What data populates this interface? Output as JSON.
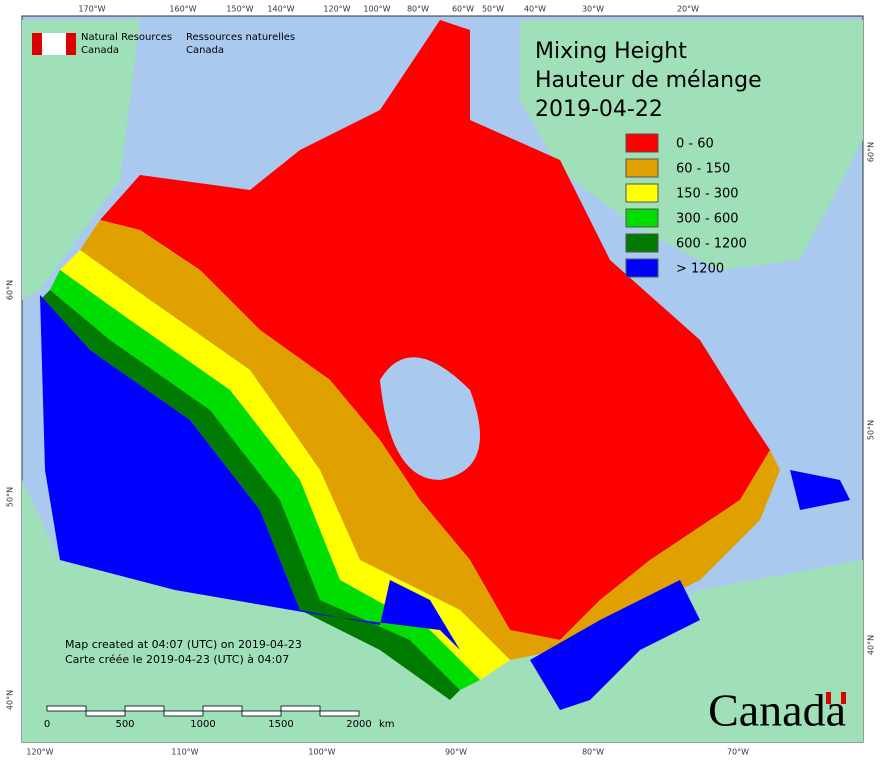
{
  "header": {
    "agency_en": [
      "Natural Resources",
      "Canada"
    ],
    "agency_fr": [
      "Ressources naturelles",
      "Canada"
    ]
  },
  "title": [
    "Mixing Height",
    "Hauteur de mélange",
    "2019-04-22"
  ],
  "legend": [
    {
      "label": "0 - 60",
      "color": "#ff0000"
    },
    {
      "label": "60 - 150",
      "color": "#e0a000"
    },
    {
      "label": "150 - 300",
      "color": "#ffff00"
    },
    {
      "label": "300 - 600",
      "color": "#00dd00"
    },
    {
      "label": "600 - 1200",
      "color": "#007a00"
    },
    {
      "label": "> 1200",
      "color": "#0000ff"
    }
  ],
  "top_axis": [
    "170°W",
    "160°W",
    "150°W",
    "140°W",
    "120°W",
    "100°W",
    "80°W",
    "60°W",
    "50°W",
    "40°W",
    "30°W",
    "20°W"
  ],
  "bottom_axis": [
    "120°W",
    "110°W",
    "100°W",
    "90°W",
    "80°W",
    "70°W"
  ],
  "left_axis": [
    "60°N",
    "50°N",
    "40°N"
  ],
  "right_axis": [
    "60°N",
    "50°N",
    "40°N"
  ],
  "footer": {
    "created_en": "Map created at 04:07 (UTC) on 2019-04-23",
    "created_fr": "Carte créée le 2019-04-23 (UTC) à 04:07"
  },
  "scale_bar": {
    "labels": [
      "0",
      "500",
      "1000",
      "1500",
      "2000"
    ],
    "unit": "km"
  },
  "wordmark": "Canada"
}
